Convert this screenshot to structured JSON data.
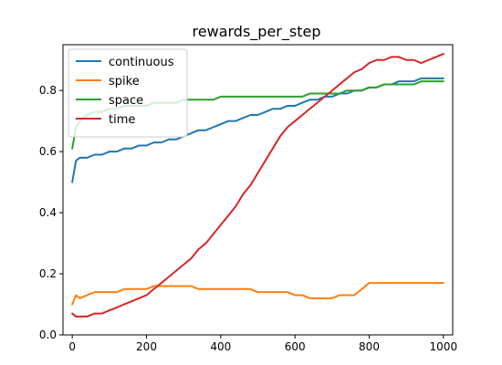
{
  "chart_data": {
    "type": "line",
    "title": "rewards_per_step",
    "xlabel": "",
    "ylabel": "",
    "xlim": [
      -25,
      1025
    ],
    "ylim": [
      0.0,
      0.95
    ],
    "xticks": [
      0,
      200,
      400,
      600,
      800,
      1000
    ],
    "yticks": [
      0.0,
      0.2,
      0.4,
      0.6,
      0.8
    ],
    "xtick_labels": [
      "0",
      "200",
      "400",
      "600",
      "800",
      "1000"
    ],
    "ytick_labels": [
      "0.0",
      "0.2",
      "0.4",
      "0.6",
      "0.8"
    ],
    "grid": false,
    "legend_position": "top-left",
    "series": [
      {
        "name": "continuous",
        "color": "#1f77b4",
        "x": [
          0,
          10,
          20,
          40,
          60,
          80,
          100,
          120,
          140,
          160,
          180,
          200,
          220,
          240,
          260,
          280,
          300,
          320,
          340,
          360,
          380,
          400,
          420,
          440,
          460,
          480,
          500,
          520,
          540,
          560,
          580,
          600,
          620,
          640,
          660,
          680,
          700,
          720,
          740,
          760,
          780,
          800,
          820,
          840,
          860,
          880,
          900,
          920,
          940,
          960,
          980,
          1000
        ],
        "y": [
          0.5,
          0.57,
          0.58,
          0.58,
          0.59,
          0.59,
          0.6,
          0.6,
          0.61,
          0.61,
          0.62,
          0.62,
          0.63,
          0.63,
          0.64,
          0.64,
          0.65,
          0.66,
          0.67,
          0.67,
          0.68,
          0.69,
          0.7,
          0.7,
          0.71,
          0.72,
          0.72,
          0.73,
          0.74,
          0.74,
          0.75,
          0.75,
          0.76,
          0.77,
          0.77,
          0.78,
          0.78,
          0.79,
          0.79,
          0.8,
          0.8,
          0.81,
          0.81,
          0.82,
          0.82,
          0.83,
          0.83,
          0.83,
          0.84,
          0.84,
          0.84,
          0.84
        ]
      },
      {
        "name": "spike",
        "color": "#ff7f0e",
        "x": [
          0,
          10,
          20,
          40,
          60,
          80,
          100,
          120,
          140,
          160,
          180,
          200,
          220,
          240,
          260,
          280,
          300,
          320,
          340,
          360,
          380,
          400,
          420,
          440,
          460,
          480,
          500,
          520,
          540,
          560,
          580,
          600,
          620,
          640,
          660,
          680,
          700,
          720,
          740,
          760,
          780,
          800,
          820,
          840,
          860,
          880,
          900,
          920,
          940,
          960,
          980,
          1000
        ],
        "y": [
          0.1,
          0.13,
          0.12,
          0.13,
          0.14,
          0.14,
          0.14,
          0.14,
          0.15,
          0.15,
          0.15,
          0.15,
          0.16,
          0.16,
          0.16,
          0.16,
          0.16,
          0.16,
          0.15,
          0.15,
          0.15,
          0.15,
          0.15,
          0.15,
          0.15,
          0.15,
          0.14,
          0.14,
          0.14,
          0.14,
          0.14,
          0.13,
          0.13,
          0.12,
          0.12,
          0.12,
          0.12,
          0.13,
          0.13,
          0.13,
          0.15,
          0.17,
          0.17,
          0.17,
          0.17,
          0.17,
          0.17,
          0.17,
          0.17,
          0.17,
          0.17,
          0.17
        ]
      },
      {
        "name": "space",
        "color": "#2ca02c",
        "x": [
          0,
          10,
          20,
          40,
          60,
          80,
          100,
          120,
          140,
          160,
          180,
          200,
          220,
          240,
          260,
          280,
          300,
          320,
          340,
          360,
          380,
          400,
          420,
          440,
          460,
          480,
          500,
          520,
          540,
          560,
          580,
          600,
          620,
          640,
          660,
          680,
          700,
          720,
          740,
          760,
          780,
          800,
          820,
          840,
          860,
          880,
          900,
          920,
          940,
          960,
          980,
          1000
        ],
        "y": [
          0.61,
          0.68,
          0.7,
          0.72,
          0.73,
          0.73,
          0.74,
          0.74,
          0.75,
          0.75,
          0.75,
          0.75,
          0.76,
          0.76,
          0.76,
          0.76,
          0.77,
          0.77,
          0.77,
          0.77,
          0.77,
          0.78,
          0.78,
          0.78,
          0.78,
          0.78,
          0.78,
          0.78,
          0.78,
          0.78,
          0.78,
          0.78,
          0.78,
          0.79,
          0.79,
          0.79,
          0.79,
          0.79,
          0.8,
          0.8,
          0.8,
          0.81,
          0.81,
          0.82,
          0.82,
          0.82,
          0.82,
          0.82,
          0.83,
          0.83,
          0.83,
          0.83
        ]
      },
      {
        "name": "time",
        "color": "#d62728",
        "x": [
          0,
          10,
          20,
          40,
          60,
          80,
          100,
          120,
          140,
          160,
          180,
          200,
          220,
          240,
          260,
          280,
          300,
          320,
          340,
          360,
          380,
          400,
          420,
          440,
          460,
          480,
          500,
          520,
          540,
          560,
          580,
          600,
          620,
          640,
          660,
          680,
          700,
          720,
          740,
          760,
          780,
          800,
          820,
          840,
          860,
          880,
          900,
          920,
          940,
          960,
          980,
          1000
        ],
        "y": [
          0.07,
          0.06,
          0.06,
          0.06,
          0.07,
          0.07,
          0.08,
          0.09,
          0.1,
          0.11,
          0.12,
          0.13,
          0.15,
          0.17,
          0.19,
          0.21,
          0.23,
          0.25,
          0.28,
          0.3,
          0.33,
          0.36,
          0.39,
          0.42,
          0.46,
          0.49,
          0.53,
          0.57,
          0.61,
          0.65,
          0.68,
          0.7,
          0.72,
          0.74,
          0.76,
          0.78,
          0.8,
          0.82,
          0.84,
          0.86,
          0.87,
          0.89,
          0.9,
          0.9,
          0.91,
          0.91,
          0.9,
          0.9,
          0.89,
          0.9,
          0.91,
          0.92
        ]
      }
    ]
  }
}
